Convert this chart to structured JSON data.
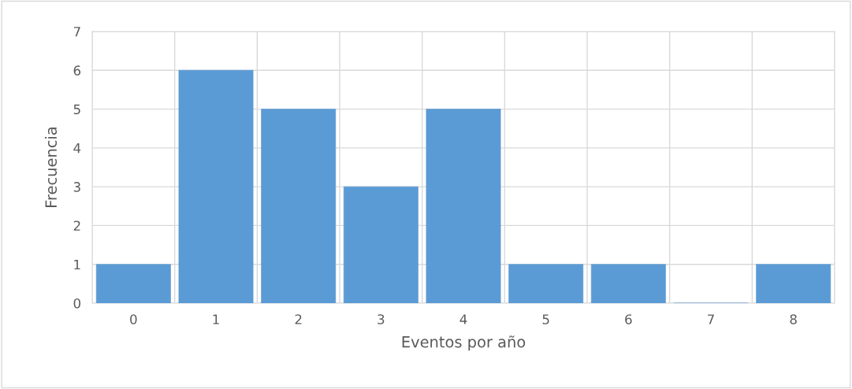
{
  "chart_data": {
    "type": "bar",
    "xlabel": "Eventos por año",
    "ylabel": "Frecuencia",
    "categories": [
      "0",
      "1",
      "2",
      "3",
      "4",
      "5",
      "6",
      "7",
      "8"
    ],
    "values": [
      1,
      6,
      5,
      3,
      5,
      1,
      1,
      0,
      1
    ],
    "color": "#5b9bd5",
    "ylim": [
      0,
      7
    ],
    "yticks": [
      0,
      1,
      2,
      3,
      4,
      5,
      6,
      7
    ],
    "grid": true
  }
}
